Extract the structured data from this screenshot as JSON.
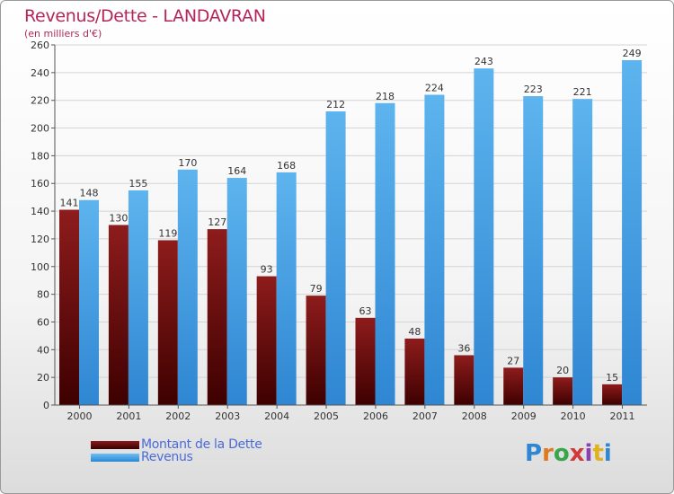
{
  "chart_data": {
    "type": "bar",
    "title": "Revenus/Dette - LANDAVRAN",
    "subtitle": "(en milliers d'€)",
    "categories": [
      "2000",
      "2001",
      "2002",
      "2003",
      "2004",
      "2005",
      "2006",
      "2007",
      "2008",
      "2009",
      "2010",
      "2011"
    ],
    "series": [
      {
        "name": "Montant de la Dette",
        "values": [
          141,
          130,
          119,
          127,
          93,
          79,
          63,
          48,
          36,
          27,
          20,
          15
        ],
        "color": "#7a1414"
      },
      {
        "name": "Revenus",
        "values": [
          148,
          155,
          170,
          164,
          168,
          212,
          218,
          224,
          243,
          223,
          221,
          249
        ],
        "color": "#4ea6e6"
      }
    ],
    "ylim": [
      0,
      260
    ],
    "yticks": [
      0,
      20,
      40,
      60,
      80,
      100,
      120,
      140,
      160,
      180,
      200,
      220,
      240,
      260
    ],
    "grid": true,
    "legend_position": "bottom-left"
  },
  "branding": {
    "logo_text": "Proxiti"
  }
}
